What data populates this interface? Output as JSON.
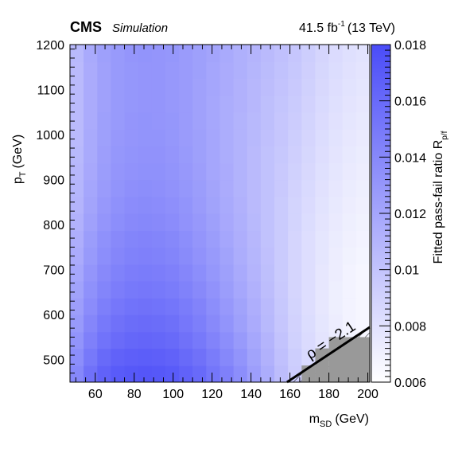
{
  "header": {
    "experiment": "CMS",
    "tag": "Simulation",
    "lumi_value": "41.5 fb",
    "lumi_exp": "-1",
    "energy": "(13 TeV)"
  },
  "chart_data": {
    "type": "heatmap",
    "xlabel_main": "m",
    "xlabel_sub": "SD",
    "xlabel_unit": "(GeV)",
    "ylabel_main": "p",
    "ylabel_sub": "T",
    "ylabel_unit": "(GeV)",
    "zlabel_main": "Fitted pass-fail ratio R",
    "zlabel_sub": "p/f",
    "xlim": [
      47,
      201
    ],
    "ylim": [
      450,
      1200
    ],
    "zlim": [
      0.006,
      0.018
    ],
    "x_ticks": [
      60,
      80,
      100,
      120,
      140,
      160,
      180,
      200
    ],
    "y_ticks": [
      500,
      600,
      700,
      800,
      900,
      1000,
      1100,
      1200
    ],
    "z_ticks": [
      "0.006",
      "0.008",
      "0.01",
      "0.012",
      "0.014",
      "0.016",
      "0.018"
    ],
    "x_edges": [
      47,
      54,
      61,
      68,
      75,
      82,
      89,
      96,
      103,
      110,
      117,
      124,
      131,
      138,
      145,
      152,
      159,
      166,
      173,
      180,
      187,
      194,
      201
    ],
    "y_edges": [
      450,
      487,
      525,
      562,
      600,
      637,
      675,
      712,
      750,
      787,
      825,
      862,
      900,
      937,
      975,
      1012,
      1050,
      1087,
      1125,
      1162,
      1200
    ],
    "z_rows": [
      [
        0.014,
        0.0155,
        0.0165,
        0.017,
        0.0172,
        0.0173,
        0.0172,
        0.017,
        0.0165,
        0.016,
        0.0152,
        0.0145,
        0.0136,
        0.0125,
        0.0115,
        0.0104,
        0.0094,
        0.0086,
        0.008,
        0.0074,
        0.007,
        0.0068
      ],
      [
        0.0136,
        0.015,
        0.016,
        0.0165,
        0.0167,
        0.0168,
        0.0167,
        0.0165,
        0.016,
        0.0155,
        0.0148,
        0.014,
        0.0132,
        0.0122,
        0.0112,
        0.0102,
        0.0093,
        0.0085,
        0.0079,
        0.0073,
        0.0069,
        0.0067
      ],
      [
        0.0132,
        0.0145,
        0.0154,
        0.0159,
        0.0162,
        0.0163,
        0.0162,
        0.016,
        0.0155,
        0.015,
        0.0143,
        0.0136,
        0.0128,
        0.0119,
        0.011,
        0.01,
        0.0091,
        0.0084,
        0.0078,
        0.0073,
        0.0069,
        0.0066
      ],
      [
        0.0128,
        0.0141,
        0.015,
        0.0155,
        0.0158,
        0.0159,
        0.0158,
        0.0156,
        0.0151,
        0.0146,
        0.0139,
        0.0132,
        0.0124,
        0.0116,
        0.0107,
        0.0098,
        0.009,
        0.0083,
        0.0077,
        0.0072,
        0.0068,
        0.0066
      ],
      [
        0.0125,
        0.0137,
        0.0146,
        0.0151,
        0.0154,
        0.0155,
        0.0154,
        0.0152,
        0.0148,
        0.0143,
        0.0136,
        0.0129,
        0.0122,
        0.0114,
        0.0106,
        0.0097,
        0.0089,
        0.0082,
        0.0076,
        0.0071,
        0.0068,
        0.0066
      ],
      [
        0.0122,
        0.0134,
        0.0142,
        0.0147,
        0.015,
        0.0151,
        0.015,
        0.0148,
        0.0144,
        0.0139,
        0.0133,
        0.0126,
        0.0119,
        0.0112,
        0.0104,
        0.0096,
        0.0088,
        0.0082,
        0.0076,
        0.0071,
        0.0068,
        0.0066
      ],
      [
        0.0119,
        0.0131,
        0.0139,
        0.0144,
        0.0147,
        0.0148,
        0.0147,
        0.0145,
        0.0141,
        0.0136,
        0.013,
        0.0124,
        0.0117,
        0.011,
        0.0103,
        0.0095,
        0.0088,
        0.0082,
        0.0076,
        0.0072,
        0.0068,
        0.0066
      ],
      [
        0.0116,
        0.0128,
        0.0136,
        0.0141,
        0.0144,
        0.0145,
        0.0144,
        0.0142,
        0.0138,
        0.0133,
        0.0128,
        0.0122,
        0.0115,
        0.0109,
        0.0102,
        0.0095,
        0.0088,
        0.0082,
        0.0077,
        0.0072,
        0.0069,
        0.0067
      ],
      [
        0.0114,
        0.0126,
        0.0134,
        0.0139,
        0.0142,
        0.0143,
        0.0142,
        0.014,
        0.0136,
        0.0131,
        0.0126,
        0.012,
        0.0114,
        0.0108,
        0.0101,
        0.0095,
        0.0088,
        0.0082,
        0.0077,
        0.0073,
        0.007,
        0.0068
      ],
      [
        0.0112,
        0.0123,
        0.0131,
        0.0136,
        0.0139,
        0.014,
        0.0139,
        0.0137,
        0.0133,
        0.0129,
        0.0124,
        0.0118,
        0.0113,
        0.0107,
        0.0101,
        0.0095,
        0.0089,
        0.0083,
        0.0078,
        0.0074,
        0.0071,
        0.0069
      ],
      [
        0.011,
        0.0121,
        0.0129,
        0.0134,
        0.0137,
        0.0138,
        0.0137,
        0.0135,
        0.0132,
        0.0127,
        0.0122,
        0.0117,
        0.0112,
        0.0106,
        0.0101,
        0.0095,
        0.0089,
        0.0084,
        0.0079,
        0.0075,
        0.0072,
        0.007
      ],
      [
        0.0109,
        0.012,
        0.0127,
        0.0132,
        0.0135,
        0.0136,
        0.0135,
        0.0133,
        0.013,
        0.0126,
        0.0121,
        0.0116,
        0.0111,
        0.0106,
        0.0101,
        0.0096,
        0.009,
        0.0085,
        0.008,
        0.0076,
        0.0073,
        0.0071
      ],
      [
        0.0108,
        0.0118,
        0.0126,
        0.0131,
        0.0133,
        0.0134,
        0.0134,
        0.0132,
        0.0129,
        0.0125,
        0.012,
        0.0116,
        0.0111,
        0.0106,
        0.0101,
        0.0096,
        0.0091,
        0.0086,
        0.0081,
        0.0077,
        0.0074,
        0.0072
      ],
      [
        0.0107,
        0.0117,
        0.0125,
        0.013,
        0.0132,
        0.0133,
        0.0133,
        0.0131,
        0.0128,
        0.0124,
        0.012,
        0.0115,
        0.0111,
        0.0106,
        0.0101,
        0.0097,
        0.0092,
        0.0087,
        0.0082,
        0.0078,
        0.0075,
        0.0073
      ],
      [
        0.0106,
        0.0117,
        0.0124,
        0.0129,
        0.0131,
        0.0132,
        0.0132,
        0.013,
        0.0127,
        0.0124,
        0.012,
        0.0115,
        0.0111,
        0.0107,
        0.0102,
        0.0098,
        0.0093,
        0.0088,
        0.0083,
        0.0079,
        0.0076,
        0.0074
      ],
      [
        0.0106,
        0.0116,
        0.0124,
        0.0128,
        0.0131,
        0.0132,
        0.0131,
        0.013,
        0.0127,
        0.0123,
        0.0119,
        0.0115,
        0.0111,
        0.0107,
        0.0103,
        0.0098,
        0.0094,
        0.0089,
        0.0084,
        0.008,
        0.0077,
        0.0075
      ],
      [
        0.0106,
        0.0116,
        0.0123,
        0.0128,
        0.013,
        0.0131,
        0.0131,
        0.0129,
        0.0127,
        0.0123,
        0.0119,
        0.0115,
        0.0112,
        0.0108,
        0.0103,
        0.0099,
        0.0095,
        0.009,
        0.0085,
        0.0081,
        0.0078,
        0.0076
      ],
      [
        0.0106,
        0.0116,
        0.0123,
        0.0128,
        0.013,
        0.0131,
        0.0131,
        0.0129,
        0.0127,
        0.0123,
        0.012,
        0.0116,
        0.0112,
        0.0108,
        0.0104,
        0.01,
        0.0096,
        0.0091,
        0.0086,
        0.0082,
        0.0079,
        0.0077
      ],
      [
        0.0106,
        0.0116,
        0.0123,
        0.0128,
        0.013,
        0.0131,
        0.0131,
        0.0129,
        0.0127,
        0.0124,
        0.012,
        0.0116,
        0.0113,
        0.0109,
        0.0105,
        0.0101,
        0.0097,
        0.0092,
        0.0087,
        0.0083,
        0.008,
        0.0078
      ],
      [
        0.0107,
        0.0117,
        0.0124,
        0.0128,
        0.0131,
        0.0132,
        0.0131,
        0.013,
        0.0127,
        0.0124,
        0.0121,
        0.0117,
        0.0113,
        0.011,
        0.0106,
        0.0102,
        0.0098,
        0.0093,
        0.0088,
        0.0084,
        0.0081,
        0.0079
      ]
    ],
    "excluded_boundary": [
      [
        158.5,
        450
      ],
      [
        201,
        572
      ]
    ],
    "excluded_cells": [
      [
        166,
        450,
        173,
        487
      ],
      [
        173,
        450,
        180,
        525
      ],
      [
        180,
        450,
        201,
        550
      ]
    ],
    "annotation": "ρ = −2.1",
    "colors": {
      "low": "#ffffff",
      "high": "#4a4cf8",
      "excluded": "#999999"
    }
  }
}
